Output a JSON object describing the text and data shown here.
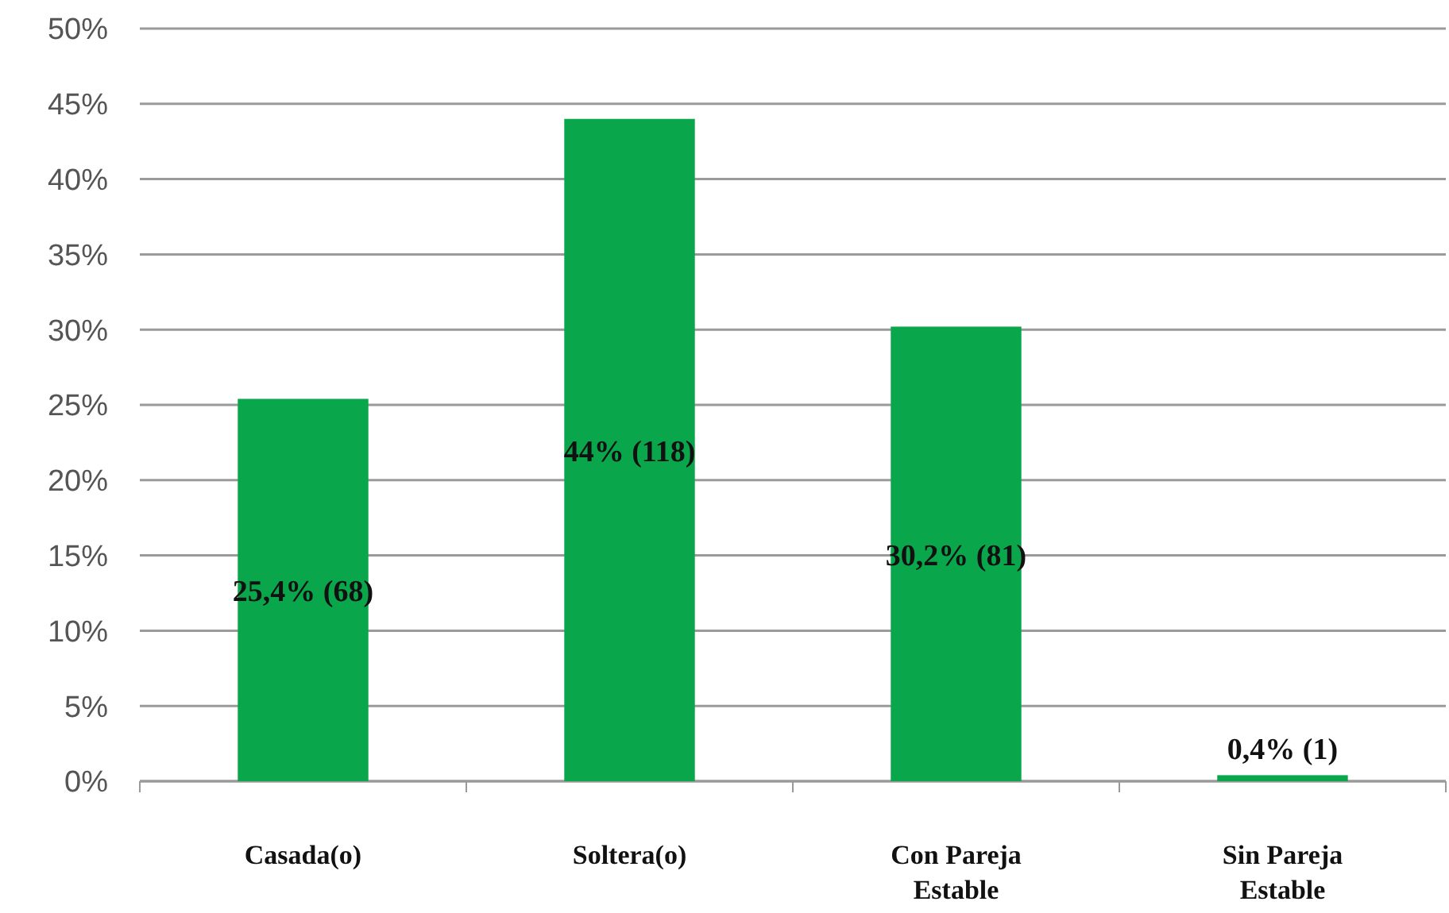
{
  "chart_data": {
    "type": "bar",
    "categories": [
      "Casada(o)",
      "Soltera(o)",
      "Con Pareja Estable",
      "Sin Pareja Estable"
    ],
    "values": [
      25.4,
      44,
      30.2,
      0.4
    ],
    "color": "#0aa64b",
    "value_labels": [
      "25,4% (68)",
      "44% (118)",
      "30,2% (81)",
      "0,4% (1)"
    ],
    "ylim": [
      0,
      50
    ],
    "yticks": [
      {
        "value": 0,
        "label": "0%"
      },
      {
        "value": 5,
        "label": "5%"
      },
      {
        "value": 10,
        "label": "10%"
      },
      {
        "value": 15,
        "label": "15%"
      },
      {
        "value": 20,
        "label": "20%"
      },
      {
        "value": 25,
        "label": "25%"
      },
      {
        "value": 30,
        "label": "30%"
      },
      {
        "value": 35,
        "label": "35%"
      },
      {
        "value": 40,
        "label": "40%"
      },
      {
        "value": 45,
        "label": "45%"
      },
      {
        "value": 50,
        "label": "50%"
      }
    ],
    "grid": "y"
  }
}
